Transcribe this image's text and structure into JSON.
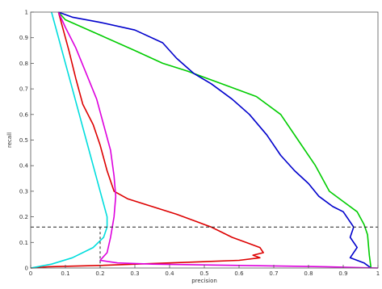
{
  "chart_data": {
    "type": "line",
    "title": "",
    "xlabel": "precision",
    "ylabel": "recall",
    "xlim": [
      0,
      1
    ],
    "ylim": [
      0,
      1
    ],
    "x_ticks": [
      "0",
      "0.1",
      "0.2",
      "0.3",
      "0.4",
      "0.5",
      "0.6",
      "0.7",
      "0.8",
      "0.9",
      "1"
    ],
    "y_ticks": [
      "0",
      "0.1",
      "0.2",
      "0.3",
      "0.4",
      "0.5",
      "0.6",
      "0.7",
      "0.8",
      "0.9",
      "1"
    ],
    "grid": false,
    "reference_lines": {
      "horizontal_y": 0.16,
      "vertical_x": 0.2
    },
    "series": [
      {
        "color": "#00cc00",
        "points": [
          [
            0.08,
            1.0
          ],
          [
            0.1,
            0.97
          ],
          [
            0.2,
            0.91
          ],
          [
            0.3,
            0.85
          ],
          [
            0.38,
            0.8
          ],
          [
            0.45,
            0.77
          ],
          [
            0.55,
            0.72
          ],
          [
            0.65,
            0.67
          ],
          [
            0.72,
            0.6
          ],
          [
            0.77,
            0.5
          ],
          [
            0.82,
            0.4
          ],
          [
            0.86,
            0.3
          ],
          [
            0.9,
            0.26
          ],
          [
            0.94,
            0.22
          ],
          [
            0.96,
            0.17
          ],
          [
            0.97,
            0.13
          ],
          [
            0.975,
            0.05
          ],
          [
            0.98,
            0.0
          ]
        ]
      },
      {
        "color": "#0000cc",
        "points": [
          [
            0.08,
            1.0
          ],
          [
            0.12,
            0.98
          ],
          [
            0.2,
            0.96
          ],
          [
            0.3,
            0.93
          ],
          [
            0.38,
            0.88
          ],
          [
            0.42,
            0.82
          ],
          [
            0.47,
            0.76
          ],
          [
            0.52,
            0.72
          ],
          [
            0.58,
            0.66
          ],
          [
            0.63,
            0.6
          ],
          [
            0.68,
            0.52
          ],
          [
            0.72,
            0.44
          ],
          [
            0.76,
            0.38
          ],
          [
            0.8,
            0.33
          ],
          [
            0.83,
            0.28
          ],
          [
            0.87,
            0.24
          ],
          [
            0.9,
            0.22
          ],
          [
            0.92,
            0.18
          ],
          [
            0.93,
            0.16
          ],
          [
            0.92,
            0.12
          ],
          [
            0.94,
            0.08
          ],
          [
            0.92,
            0.04
          ],
          [
            0.94,
            0.03
          ],
          [
            0.96,
            0.02
          ],
          [
            0.98,
            0.0
          ]
        ]
      },
      {
        "color": "#dd0000",
        "points": [
          [
            0.08,
            1.0
          ],
          [
            0.09,
            0.95
          ],
          [
            0.11,
            0.85
          ],
          [
            0.13,
            0.74
          ],
          [
            0.15,
            0.64
          ],
          [
            0.18,
            0.56
          ],
          [
            0.2,
            0.48
          ],
          [
            0.22,
            0.38
          ],
          [
            0.24,
            0.3
          ],
          [
            0.28,
            0.27
          ],
          [
            0.35,
            0.24
          ],
          [
            0.42,
            0.21
          ],
          [
            0.48,
            0.18
          ],
          [
            0.52,
            0.16
          ],
          [
            0.55,
            0.14
          ],
          [
            0.58,
            0.12
          ],
          [
            0.62,
            0.1
          ],
          [
            0.66,
            0.08
          ],
          [
            0.67,
            0.06
          ],
          [
            0.64,
            0.05
          ],
          [
            0.66,
            0.04
          ],
          [
            0.6,
            0.03
          ],
          [
            0.4,
            0.02
          ],
          [
            0.2,
            0.01
          ],
          [
            0.05,
            0.005
          ],
          [
            0.0,
            0.0
          ]
        ]
      },
      {
        "color": "#dd00dd",
        "points": [
          [
            0.08,
            1.0
          ],
          [
            0.1,
            0.94
          ],
          [
            0.13,
            0.86
          ],
          [
            0.16,
            0.76
          ],
          [
            0.19,
            0.66
          ],
          [
            0.21,
            0.56
          ],
          [
            0.23,
            0.46
          ],
          [
            0.24,
            0.36
          ],
          [
            0.245,
            0.28
          ],
          [
            0.24,
            0.2
          ],
          [
            0.23,
            0.12
          ],
          [
            0.22,
            0.06
          ],
          [
            0.2,
            0.03
          ],
          [
            0.25,
            0.02
          ],
          [
            0.35,
            0.015
          ],
          [
            0.6,
            0.01
          ],
          [
            0.85,
            0.005
          ],
          [
            1.0,
            0.0
          ]
        ]
      },
      {
        "color": "#00dddd",
        "points": [
          [
            0.06,
            1.0
          ],
          [
            0.08,
            0.9
          ],
          [
            0.1,
            0.8
          ],
          [
            0.12,
            0.7
          ],
          [
            0.14,
            0.6
          ],
          [
            0.16,
            0.5
          ],
          [
            0.18,
            0.4
          ],
          [
            0.2,
            0.3
          ],
          [
            0.22,
            0.2
          ],
          [
            0.22,
            0.16
          ],
          [
            0.21,
            0.12
          ],
          [
            0.18,
            0.08
          ],
          [
            0.12,
            0.04
          ],
          [
            0.06,
            0.015
          ],
          [
            0.0,
            0.0
          ]
        ]
      }
    ]
  }
}
